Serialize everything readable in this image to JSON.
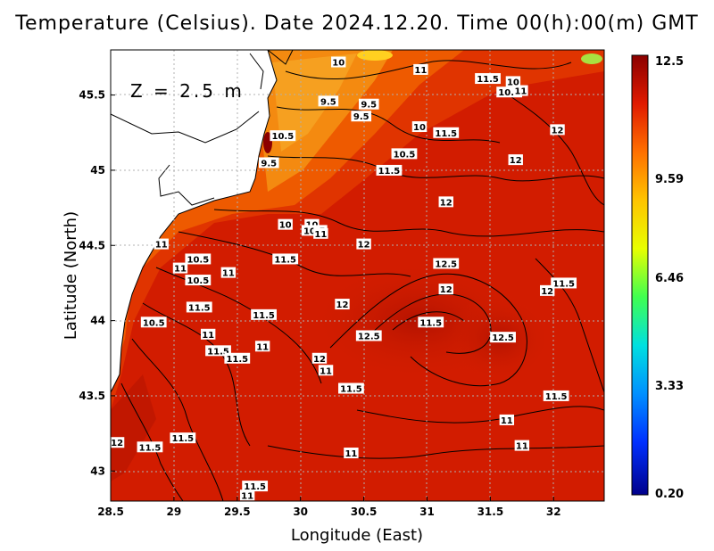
{
  "title": "Temperature (Celsius). Date 2024.12.20. Time 00(h):00(m) GMT",
  "depth_label": "Z = 2.5 m",
  "x_axis": {
    "title": "Longitude (East)",
    "range": [
      28.5,
      32.4
    ],
    "ticks": [
      "28.5",
      "29",
      "29.5",
      "30",
      "30.5",
      "31",
      "31.5",
      "32"
    ]
  },
  "y_axis": {
    "title": "Latitude (North)",
    "range": [
      42.8,
      45.8
    ],
    "ticks": [
      "43",
      "43.5",
      "44",
      "44.5",
      "45",
      "45.5"
    ]
  },
  "colorbar": {
    "min": 0.2,
    "max": 12.5,
    "labels": [
      "12.5",
      "9.59",
      "6.46",
      "3.33",
      "0.20"
    ],
    "colors": [
      "#8b0000",
      "#d71d00",
      "#ff6a00",
      "#ffc000",
      "#e8ff00",
      "#40ff40",
      "#00e0e0",
      "#0090ff",
      "#0030ff",
      "#00008b"
    ]
  },
  "colors": {
    "land": "#ffffff",
    "sea_warm": "#d01c00",
    "sea_cool": "#f07a10",
    "grid": "#bbbbbb"
  },
  "contour_labels": [
    {
      "text": "10",
      "lon": 30.3,
      "lat": 45.72
    },
    {
      "text": "11",
      "lon": 30.95,
      "lat": 45.67
    },
    {
      "text": "11.5",
      "lon": 31.48,
      "lat": 45.61
    },
    {
      "text": "10",
      "lon": 31.68,
      "lat": 45.59
    },
    {
      "text": "10.5",
      "lon": 31.65,
      "lat": 45.52
    },
    {
      "text": "11",
      "lon": 31.74,
      "lat": 45.53
    },
    {
      "text": "9.5",
      "lon": 30.22,
      "lat": 45.46
    },
    {
      "text": "9.5",
      "lon": 30.54,
      "lat": 45.44
    },
    {
      "text": "9.5",
      "lon": 30.48,
      "lat": 45.36
    },
    {
      "text": "10",
      "lon": 30.94,
      "lat": 45.29
    },
    {
      "text": "11.5",
      "lon": 31.15,
      "lat": 45.25
    },
    {
      "text": "12",
      "lon": 32.03,
      "lat": 45.27
    },
    {
      "text": "10.5",
      "lon": 29.86,
      "lat": 45.23
    },
    {
      "text": "10.5",
      "lon": 30.82,
      "lat": 45.11
    },
    {
      "text": "12",
      "lon": 31.7,
      "lat": 45.07
    },
    {
      "text": "9.5",
      "lon": 29.75,
      "lat": 45.05
    },
    {
      "text": "11.5",
      "lon": 30.7,
      "lat": 45.0
    },
    {
      "text": "12",
      "lon": 31.15,
      "lat": 44.79
    },
    {
      "text": "10",
      "lon": 29.88,
      "lat": 44.64
    },
    {
      "text": "10",
      "lon": 30.09,
      "lat": 44.64
    },
    {
      "text": "10.5",
      "lon": 30.11,
      "lat": 44.6
    },
    {
      "text": "11",
      "lon": 30.16,
      "lat": 44.58
    },
    {
      "text": "11",
      "lon": 28.9,
      "lat": 44.51
    },
    {
      "text": "12",
      "lon": 30.5,
      "lat": 44.51
    },
    {
      "text": "10.5",
      "lon": 29.19,
      "lat": 44.41
    },
    {
      "text": "11.5",
      "lon": 29.88,
      "lat": 44.41
    },
    {
      "text": "12.5",
      "lon": 31.15,
      "lat": 44.38
    },
    {
      "text": "11",
      "lon": 29.05,
      "lat": 44.35
    },
    {
      "text": "11",
      "lon": 29.43,
      "lat": 44.32
    },
    {
      "text": "10.5",
      "lon": 29.19,
      "lat": 44.27
    },
    {
      "text": "11.5",
      "lon": 32.08,
      "lat": 44.25
    },
    {
      "text": "12",
      "lon": 31.15,
      "lat": 44.21
    },
    {
      "text": "12",
      "lon": 31.95,
      "lat": 44.2
    },
    {
      "text": "12",
      "lon": 30.33,
      "lat": 44.11
    },
    {
      "text": "11.5",
      "lon": 29.2,
      "lat": 44.09
    },
    {
      "text": "11.5",
      "lon": 29.71,
      "lat": 44.04
    },
    {
      "text": "10.5",
      "lon": 28.84,
      "lat": 43.99
    },
    {
      "text": "11.5",
      "lon": 31.03,
      "lat": 43.99
    },
    {
      "text": "11",
      "lon": 29.27,
      "lat": 43.91
    },
    {
      "text": "12.5",
      "lon": 30.54,
      "lat": 43.9
    },
    {
      "text": "12.5",
      "lon": 31.6,
      "lat": 43.89
    },
    {
      "text": "11",
      "lon": 29.7,
      "lat": 43.83
    },
    {
      "text": "11.5",
      "lon": 29.35,
      "lat": 43.8
    },
    {
      "text": "11.5",
      "lon": 29.5,
      "lat": 43.75
    },
    {
      "text": "12",
      "lon": 30.15,
      "lat": 43.75
    },
    {
      "text": "11",
      "lon": 30.2,
      "lat": 43.67
    },
    {
      "text": "11.5",
      "lon": 30.4,
      "lat": 43.55
    },
    {
      "text": "11.5",
      "lon": 32.02,
      "lat": 43.5
    },
    {
      "text": "11",
      "lon": 31.63,
      "lat": 43.34
    },
    {
      "text": "11.5",
      "lon": 29.07,
      "lat": 43.22
    },
    {
      "text": "12",
      "lon": 28.55,
      "lat": 43.19
    },
    {
      "text": "11.5",
      "lon": 28.81,
      "lat": 43.16
    },
    {
      "text": "11",
      "lon": 31.75,
      "lat": 43.17
    },
    {
      "text": "11",
      "lon": 30.4,
      "lat": 43.12
    },
    {
      "text": "11.5",
      "lon": 29.64,
      "lat": 42.9
    },
    {
      "text": "11",
      "lon": 29.58,
      "lat": 42.84
    }
  ]
}
